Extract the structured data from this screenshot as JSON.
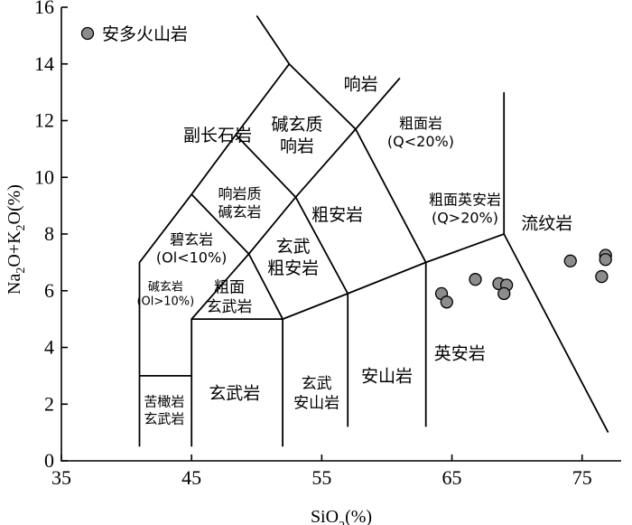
{
  "chart_data": {
    "type": "scatter",
    "xlabel_main": "SiO",
    "xlabel_sub": "2",
    "xlabel_tail": "(%)",
    "ylabel_parts": [
      {
        "t": "Na",
        "sub": false
      },
      {
        "t": "2",
        "sub": true
      },
      {
        "t": "O+K",
        "sub": false
      },
      {
        "t": "2",
        "sub": true
      },
      {
        "t": "O(%)",
        "sub": false
      }
    ],
    "xlim": [
      35,
      78
    ],
    "ylim": [
      0,
      16
    ],
    "x_ticks": [
      35,
      45,
      55,
      65,
      75
    ],
    "x_tick_labels": [
      "35",
      "45",
      "55",
      "65",
      "75"
    ],
    "y_ticks": [
      0,
      2,
      4,
      6,
      8,
      10,
      12,
      14,
      16
    ],
    "y_tick_labels": [
      "0",
      "2",
      "4",
      "6",
      "8",
      "10",
      "12",
      "14",
      "16"
    ],
    "grid": false,
    "legend_position": "top-left",
    "series": [
      {
        "name": "安多火山岩",
        "color": "#8c8c8c",
        "points": [
          {
            "x": 64.2,
            "y": 5.9
          },
          {
            "x": 64.6,
            "y": 5.6
          },
          {
            "x": 66.8,
            "y": 6.4
          },
          {
            "x": 68.6,
            "y": 6.25
          },
          {
            "x": 69.2,
            "y": 6.2
          },
          {
            "x": 69.0,
            "y": 5.9
          },
          {
            "x": 74.1,
            "y": 7.05
          },
          {
            "x": 76.5,
            "y": 6.5
          },
          {
            "x": 76.8,
            "y": 7.25
          },
          {
            "x": 76.8,
            "y": 7.1
          }
        ]
      }
    ],
    "boundaries": [
      [
        [
          41,
          0.5
        ],
        [
          41,
          7
        ],
        [
          45,
          9.4
        ],
        [
          48.4,
          11.5
        ],
        [
          52.5,
          14
        ],
        [
          57.6,
          11.7
        ],
        [
          61,
          13.5
        ]
      ],
      [
        [
          41,
          3
        ],
        [
          45,
          3
        ]
      ],
      [
        [
          45,
          0.5
        ],
        [
          45,
          5
        ],
        [
          52,
          5
        ],
        [
          52,
          0.5
        ]
      ],
      [
        [
          45,
          5
        ],
        [
          49.4,
          7.3
        ],
        [
          53,
          9.3
        ],
        [
          57.6,
          11.7
        ]
      ],
      [
        [
          45,
          9.4
        ],
        [
          49.4,
          7.3
        ],
        [
          52,
          5
        ]
      ],
      [
        [
          48.4,
          11.5
        ],
        [
          53,
          9.3
        ]
      ],
      [
        [
          52,
          5
        ],
        [
          57,
          5.9
        ],
        [
          63,
          7
        ],
        [
          69,
          8
        ],
        [
          69,
          13
        ]
      ],
      [
        [
          57,
          1.2
        ],
        [
          57,
          5.9
        ]
      ],
      [
        [
          63,
          1.2
        ],
        [
          63,
          7
        ]
      ],
      [
        [
          53,
          9.3
        ],
        [
          57,
          5.9
        ]
      ],
      [
        [
          57.6,
          11.7
        ],
        [
          63,
          7
        ]
      ],
      [
        [
          69,
          8
        ],
        [
          77,
          1
        ]
      ],
      [
        [
          52.5,
          14
        ],
        [
          50,
          15.7
        ]
      ]
    ],
    "field_labels": [
      {
        "lines": [
          "副长石岩"
        ],
        "x": 47,
        "y": 11.5,
        "size": 19
      },
      {
        "lines": [
          "碱玄质",
          "响岩"
        ],
        "x": 53.1,
        "y": 11.5,
        "size": 19
      },
      {
        "lines": [
          "响岩"
        ],
        "x": 58,
        "y": 13.3,
        "size": 19
      },
      {
        "lines": [
          "粗面岩",
          "(Q<20%)"
        ],
        "x": 62.6,
        "y": 11.6,
        "size": 16
      },
      {
        "lines": [
          "响岩质",
          "碱玄岩"
        ],
        "x": 48.7,
        "y": 9.1,
        "size": 16
      },
      {
        "lines": [
          "粗安岩"
        ],
        "x": 56.2,
        "y": 8.7,
        "size": 19
      },
      {
        "lines": [
          "粗面英安岩",
          "(Q>20%)"
        ],
        "x": 66,
        "y": 8.9,
        "size": 16
      },
      {
        "lines": [
          "流纹岩"
        ],
        "x": 72.3,
        "y": 8.4,
        "size": 19
      },
      {
        "lines": [
          "碧玄岩",
          "(Ol<10%)"
        ],
        "x": 45,
        "y": 7.5,
        "size": 16
      },
      {
        "lines": [
          "玄武",
          "粗安岩"
        ],
        "x": 52.8,
        "y": 7.2,
        "size": 19
      },
      {
        "lines": [
          "碱玄岩",
          "(Ol>10%)"
        ],
        "x": 43,
        "y": 5.9,
        "size": 13
      },
      {
        "lines": [
          "粗面",
          "玄武岩"
        ],
        "x": 47.9,
        "y": 5.8,
        "size": 17
      },
      {
        "lines": [
          "英安岩"
        ],
        "x": 65.6,
        "y": 3.8,
        "size": 19
      },
      {
        "lines": [
          "安山岩"
        ],
        "x": 60,
        "y": 3.0,
        "size": 19
      },
      {
        "lines": [
          "玄武岩"
        ],
        "x": 48.3,
        "y": 2.4,
        "size": 19
      },
      {
        "lines": [
          "玄武",
          "安山岩"
        ],
        "x": 54.6,
        "y": 2.4,
        "size": 17
      },
      {
        "lines": [
          "苦橄岩",
          "玄武岩"
        ],
        "x": 42.9,
        "y": 1.8,
        "size": 15
      }
    ]
  }
}
